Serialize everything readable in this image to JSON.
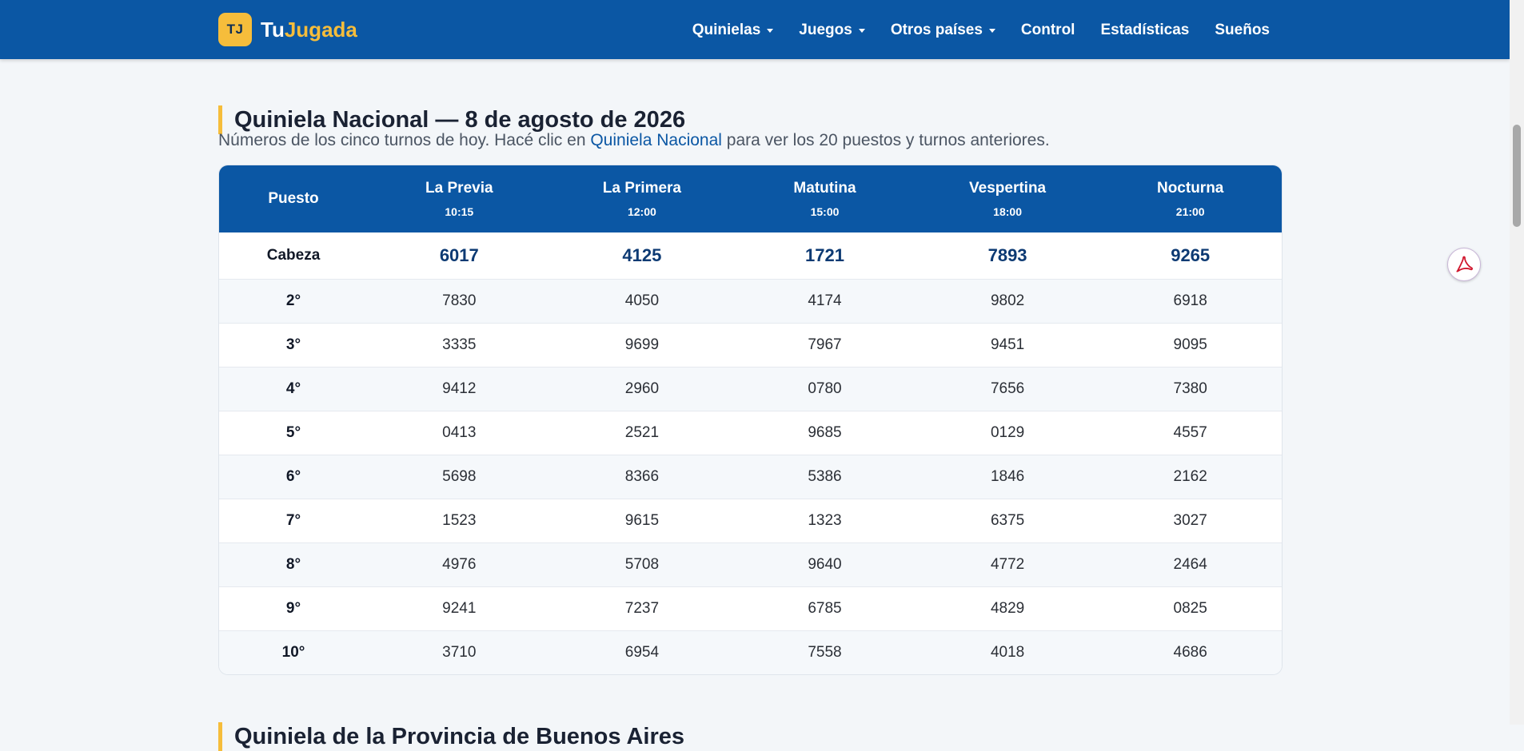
{
  "brand": {
    "badge": "TJ",
    "name_part1": "Tu",
    "name_part2": "Jugada"
  },
  "nav": [
    {
      "label": "Quinielas",
      "dropdown": true
    },
    {
      "label": "Juegos",
      "dropdown": true
    },
    {
      "label": "Otros países",
      "dropdown": true
    },
    {
      "label": "Control",
      "dropdown": false
    },
    {
      "label": "Estadísticas",
      "dropdown": false
    },
    {
      "label": "Sueños",
      "dropdown": false
    }
  ],
  "section": {
    "title": "Quiniela Nacional — 8 de agosto de 2026",
    "intro_before": "Números de los cinco turnos de hoy. Hacé clic en ",
    "intro_link": "Quiniela Nacional",
    "intro_after": " para ver los 20 puestos y turnos anteriores."
  },
  "table": {
    "puesto_header": "Puesto",
    "columns": [
      {
        "name": "La Previa",
        "time": "10:15"
      },
      {
        "name": "La Primera",
        "time": "12:00"
      },
      {
        "name": "Matutina",
        "time": "15:00"
      },
      {
        "name": "Vespertina",
        "time": "18:00"
      },
      {
        "name": "Nocturna",
        "time": "21:00"
      }
    ],
    "rows": [
      {
        "puesto": "Cabeza",
        "values": [
          "6017",
          "4125",
          "1721",
          "7893",
          "9265"
        ]
      },
      {
        "puesto": "2°",
        "values": [
          "7830",
          "4050",
          "4174",
          "9802",
          "6918"
        ]
      },
      {
        "puesto": "3°",
        "values": [
          "3335",
          "9699",
          "7967",
          "9451",
          "9095"
        ]
      },
      {
        "puesto": "4°",
        "values": [
          "9412",
          "2960",
          "0780",
          "7656",
          "7380"
        ]
      },
      {
        "puesto": "5°",
        "values": [
          "0413",
          "2521",
          "9685",
          "0129",
          "4557"
        ]
      },
      {
        "puesto": "6°",
        "values": [
          "5698",
          "8366",
          "5386",
          "1846",
          "2162"
        ]
      },
      {
        "puesto": "7°",
        "values": [
          "1523",
          "9615",
          "1323",
          "6375",
          "3027"
        ]
      },
      {
        "puesto": "8°",
        "values": [
          "4976",
          "5708",
          "9640",
          "4772",
          "2464"
        ]
      },
      {
        "puesto": "9°",
        "values": [
          "9241",
          "7237",
          "6785",
          "4829",
          "0825"
        ]
      },
      {
        "puesto": "10°",
        "values": [
          "3710",
          "6954",
          "7558",
          "4018",
          "4686"
        ]
      }
    ]
  },
  "next_section": {
    "title": "Quiniela de la Provincia de Buenos Aires"
  },
  "colors": {
    "primary": "#0b57a4",
    "accent": "#f6bd3b",
    "background": "#f3f6f9"
  },
  "icons": {
    "pdf": "pdf-icon",
    "dropdown": "chevron-down-icon"
  }
}
